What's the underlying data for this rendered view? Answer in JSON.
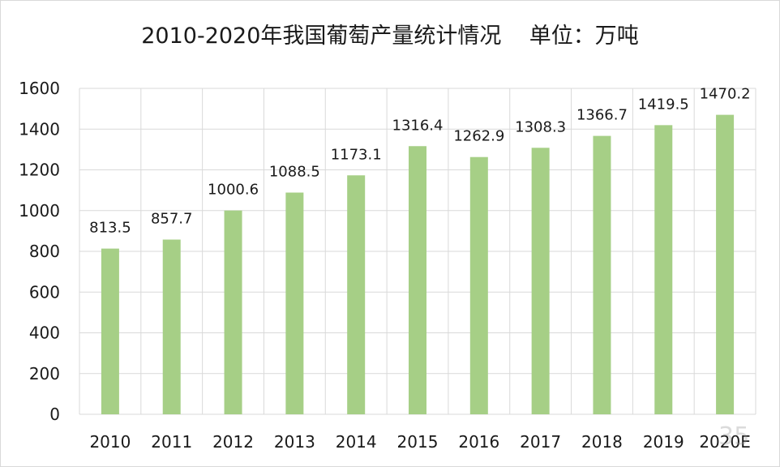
{
  "chart_data": {
    "type": "bar",
    "title": "2010-2020年我国葡萄产量统计情况    单位：万吨",
    "xlabel": "",
    "ylabel": "",
    "categories": [
      "2010",
      "2011",
      "2012",
      "2013",
      "2014",
      "2015",
      "2016",
      "2017",
      "2018",
      "2019",
      "2020E"
    ],
    "values": [
      813.5,
      857.7,
      1000.6,
      1088.5,
      1173.1,
      1316.4,
      1262.9,
      1308.3,
      1366.7,
      1419.5,
      1470.2
    ],
    "value_labels": [
      "813.5",
      "857.7",
      "1000.6",
      "1088.5",
      "1173.1",
      "1316.4",
      "1262.9",
      "1308.3",
      "1366.7",
      "1419.5",
      "1470.2"
    ],
    "ylim": [
      0,
      1600
    ],
    "yticks": [
      0,
      200,
      400,
      600,
      800,
      1000,
      1200,
      1400,
      1600
    ],
    "grid": true,
    "legend": "none",
    "bar_color": "#a6cf86",
    "grid_color": "#d9d9d9"
  }
}
